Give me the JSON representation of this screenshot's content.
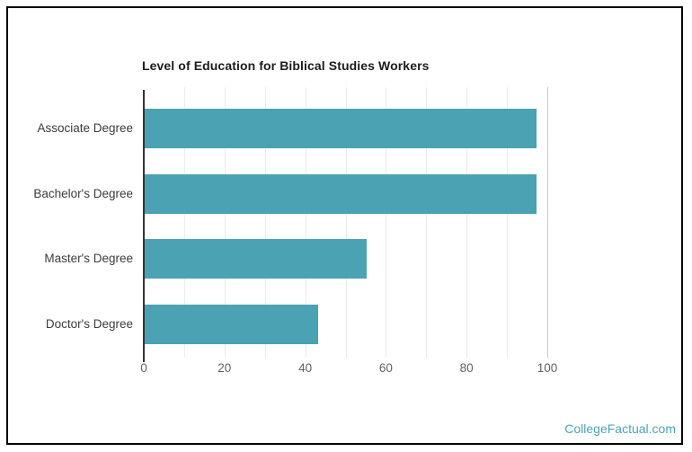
{
  "chart_data": {
    "type": "bar",
    "orientation": "horizontal",
    "title": "Level of Education for Biblical Studies Workers",
    "categories": [
      "Associate Degree",
      "Bachelor's Degree",
      "Master's Degree",
      "Doctor's Degree"
    ],
    "values": [
      97,
      97,
      55,
      43
    ],
    "xlabel": "",
    "ylabel": "",
    "xlim": [
      0,
      105
    ],
    "x_ticks": [
      0,
      20,
      40,
      60,
      80,
      100
    ],
    "gridline_interval": 10,
    "grid": true,
    "legend_position": "none",
    "bar_color": "#4aa2b2",
    "axis_line_color": "#333333"
  },
  "watermark": {
    "text": "CollegeFactual.com",
    "color": "#4aa5b5"
  }
}
